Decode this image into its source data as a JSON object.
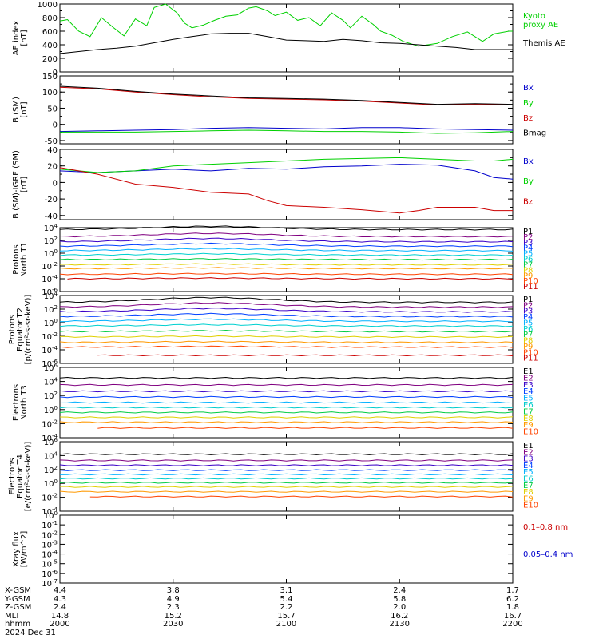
{
  "colors": {
    "black": "#000000",
    "green": "#00d000",
    "blue": "#0000cc",
    "red": "#cc0000",
    "proton_ramp": [
      "#000000",
      "#800080",
      "#3a00c8",
      "#0040ff",
      "#00b0ff",
      "#00d0d0",
      "#00cc44",
      "#e0d000",
      "#ff9900",
      "#ff4400",
      "#cc0000"
    ],
    "electron_ramp": [
      "#000000",
      "#800080",
      "#3a00c8",
      "#0040ff",
      "#00b0ff",
      "#00cccc",
      "#00cc44",
      "#e0d000",
      "#ff9900",
      "#ff4400",
      "#cc0000"
    ]
  },
  "chart_data": [
    {
      "type": "line",
      "ylabel": "AE index\n[nT]",
      "ylim": [
        0,
        1000
      ],
      "yticks": [
        "1000",
        "800",
        "600",
        "400",
        "200",
        "0"
      ],
      "legend": [
        {
          "text": "Kyoto\nproxy AE",
          "color": "#00d000"
        },
        {
          "text": "Themis AE",
          "color": "#000000"
        }
      ],
      "series": [
        {
          "name": "Kyoto proxy AE",
          "color": "#00d000",
          "x": [
            0,
            2,
            5,
            8,
            11,
            14,
            17,
            20,
            23,
            25,
            28,
            31,
            33,
            35,
            38,
            41,
            44,
            47,
            50,
            52,
            55,
            57,
            60,
            63,
            66,
            69,
            72,
            75,
            77,
            80,
            83,
            85,
            88,
            91,
            95,
            100,
            104,
            108,
            112,
            115,
            119,
            120
          ],
          "y": [
            750,
            770,
            600,
            520,
            800,
            660,
            530,
            780,
            680,
            950,
            1000,
            870,
            720,
            650,
            690,
            760,
            820,
            840,
            940,
            960,
            900,
            830,
            880,
            760,
            800,
            680,
            870,
            760,
            650,
            820,
            700,
            600,
            540,
            450,
            380,
            420,
            520,
            590,
            450,
            560,
            600,
            600
          ]
        },
        {
          "name": "Themis AE",
          "color": "#000000",
          "x": [
            0,
            5,
            10,
            15,
            20,
            25,
            30,
            35,
            40,
            45,
            50,
            55,
            60,
            65,
            70,
            75,
            80,
            85,
            90,
            95,
            100,
            105,
            110,
            115,
            120
          ],
          "y": [
            270,
            300,
            330,
            350,
            380,
            430,
            480,
            520,
            560,
            570,
            570,
            520,
            470,
            460,
            450,
            480,
            460,
            430,
            420,
            400,
            380,
            360,
            330,
            330,
            330
          ]
        }
      ]
    },
    {
      "type": "line",
      "ylabel": "B (SM)\n[nT]",
      "ylim": [
        -60,
        150
      ],
      "yticks": [
        "150",
        "100",
        "50",
        "0",
        "-50"
      ],
      "legend": [
        {
          "text": "Bx",
          "color": "#0000cc"
        },
        {
          "text": "By",
          "color": "#00d000"
        },
        {
          "text": "Bz",
          "color": "#cc0000"
        },
        {
          "text": "Bmag",
          "color": "#000000"
        }
      ],
      "series": [
        {
          "name": "Bx",
          "color": "#0000cc",
          "x": [
            0,
            10,
            20,
            30,
            40,
            50,
            60,
            70,
            80,
            90,
            100,
            110,
            120
          ],
          "y": [
            -22,
            -20,
            -18,
            -16,
            -12,
            -10,
            -12,
            -14,
            -10,
            -10,
            -14,
            -16,
            -18
          ]
        },
        {
          "name": "By",
          "color": "#00d000",
          "x": [
            0,
            10,
            20,
            30,
            40,
            50,
            60,
            70,
            80,
            90,
            100,
            110,
            120
          ],
          "y": [
            -24,
            -24,
            -24,
            -22,
            -20,
            -18,
            -20,
            -22,
            -22,
            -24,
            -28,
            -26,
            -22
          ]
        },
        {
          "name": "Bz",
          "color": "#cc0000",
          "x": [
            0,
            10,
            20,
            30,
            40,
            50,
            60,
            70,
            80,
            90,
            100,
            110,
            120
          ],
          "y": [
            115,
            110,
            100,
            92,
            85,
            80,
            78,
            76,
            72,
            66,
            60,
            62,
            60
          ]
        },
        {
          "name": "Bmag",
          "color": "#000000",
          "x": [
            0,
            10,
            20,
            30,
            40,
            50,
            60,
            70,
            80,
            90,
            100,
            110,
            120
          ],
          "y": [
            118,
            112,
            102,
            94,
            88,
            82,
            80,
            78,
            74,
            68,
            62,
            64,
            62
          ]
        }
      ]
    },
    {
      "type": "line",
      "ylabel": "B (SM)-IGRF (SM)\n[nT]",
      "ylim": [
        -45,
        40
      ],
      "yticks": [
        "40",
        "20",
        "0",
        "-20",
        "-40"
      ],
      "legend": [
        {
          "text": "Bx",
          "color": "#0000cc"
        },
        {
          "text": "By",
          "color": "#00d000"
        },
        {
          "text": "Bz",
          "color": "#cc0000"
        }
      ],
      "series": [
        {
          "name": "Bx",
          "color": "#0000cc",
          "x": [
            0,
            10,
            20,
            30,
            40,
            50,
            60,
            70,
            80,
            90,
            100,
            110,
            115,
            120
          ],
          "y": [
            14,
            12,
            14,
            16,
            14,
            17,
            16,
            19,
            20,
            22,
            21,
            14,
            6,
            4
          ]
        },
        {
          "name": "By",
          "color": "#00d000",
          "x": [
            0,
            10,
            20,
            30,
            40,
            50,
            60,
            70,
            80,
            90,
            100,
            110,
            115,
            120
          ],
          "y": [
            16,
            12,
            14,
            20,
            22,
            24,
            26,
            28,
            29,
            30,
            28,
            26,
            26,
            28
          ]
        },
        {
          "name": "Bz",
          "color": "#cc0000",
          "x": [
            0,
            10,
            20,
            30,
            40,
            50,
            55,
            60,
            70,
            80,
            90,
            95,
            100,
            110,
            115,
            120
          ],
          "y": [
            18,
            10,
            -2,
            -6,
            -12,
            -14,
            -22,
            -28,
            -30,
            -33,
            -37,
            -34,
            -30,
            -30,
            -34,
            -34
          ]
        }
      ]
    },
    {
      "type": "line",
      "log": true,
      "ylabel": "Protons\nNorth T1",
      "ylim": [
        -6,
        4
      ],
      "yticks": [
        "10^4",
        "10^2",
        "10^0",
        "10^-2",
        "10^-4",
        "10^-6"
      ],
      "legend": [
        "P1",
        "P2",
        "P3",
        "P4",
        "P5",
        "P6",
        "P7",
        "P8",
        "P9",
        "P10",
        "P11"
      ],
      "bases": [
        3.7,
        2.6,
        1.8,
        1.1,
        0.4,
        -0.3,
        -1.0,
        -1.8,
        -2.4,
        -3.3,
        -4.0
      ],
      "bump": [
        0.5,
        0.5,
        0.5,
        0.4,
        0.3,
        0.2,
        0.1,
        0.1,
        0.1,
        0.1,
        0.1
      ],
      "start": [
        0,
        0,
        0,
        0,
        0,
        0,
        0,
        0,
        0,
        0,
        2
      ]
    },
    {
      "type": "line",
      "log": true,
      "ylabel": "Protons\nEquator T2\n[p/(cm²-s-sr-keV)]",
      "ylim": [
        -6,
        4
      ],
      "yticks": [
        "10^4",
        "10^2",
        "10^0",
        "10^-2",
        "10^-4",
        "10^-6"
      ],
      "legend": [
        "P1",
        "P2",
        "P3",
        "P4",
        "P5",
        "P6",
        "P7",
        "P8",
        "P9",
        "P10",
        "P11"
      ],
      "bases": [
        3.0,
        2.3,
        1.6,
        0.9,
        0.2,
        -0.5,
        -1.3,
        -2.1,
        -2.9,
        -3.6,
        -4.8
      ],
      "bump": [
        0.7,
        0.6,
        0.5,
        0.4,
        0.3,
        0.2,
        0.1,
        0.1,
        0.1,
        0.1,
        0.0
      ],
      "start": [
        0,
        0,
        0,
        0,
        0,
        0,
        0,
        0,
        0,
        0,
        10
      ]
    },
    {
      "type": "line",
      "log": true,
      "ylabel": "Electrons\nNorth T3",
      "ylim": [
        -4,
        6
      ],
      "yticks": [
        "10^6",
        "10^4",
        "10^2",
        "10^0",
        "10^-2",
        "10^-4"
      ],
      "legend": [
        "E1",
        "E2",
        "E3",
        "E4",
        "E5",
        "E6",
        "E7",
        "E8",
        "E9",
        "E10"
      ],
      "bases": [
        4.5,
        3.5,
        2.6,
        1.8,
        1.0,
        0.3,
        -0.4,
        -1.1,
        -1.8,
        -2.6
      ],
      "bump": [
        0.0,
        0.0,
        0.0,
        0.0,
        0.0,
        0.0,
        0.0,
        0.0,
        0.0,
        0.0
      ],
      "start": [
        0,
        0,
        0,
        0,
        0,
        0,
        0,
        0,
        0,
        10
      ]
    },
    {
      "type": "line",
      "log": true,
      "ylabel": "Electrons\nEquator T4\n[e/(cm²-s-sr-keV)]",
      "ylim": [
        -4,
        6
      ],
      "yticks": [
        "10^6",
        "10^4",
        "10^2",
        "10^0",
        "10^-2",
        "10^-4"
      ],
      "legend": [
        "E1",
        "E2",
        "E3",
        "E4",
        "E5",
        "E6",
        "E7",
        "E8",
        "E9",
        "E10"
      ],
      "bases": [
        4.2,
        3.3,
        2.6,
        1.9,
        1.3,
        0.7,
        0.1,
        -0.5,
        -1.2,
        -1.9
      ],
      "bump": [
        0.0,
        0.0,
        0.0,
        0.0,
        0.0,
        0.0,
        0.0,
        0.0,
        0.0,
        0.0
      ],
      "start": [
        0,
        0,
        0,
        0,
        0,
        0,
        0,
        0,
        0,
        8
      ]
    },
    {
      "type": "line",
      "log": true,
      "ylabel": "Xray flux\n[W/m^2]",
      "ylim": [
        -7,
        0
      ],
      "yticks": [
        "10^0",
        "10^-1",
        "10^-2",
        "10^-3",
        "10^-4",
        "10^-5",
        "10^-6",
        "10^-7"
      ],
      "legend": [
        {
          "text": "0.1–0.8 nm",
          "color": "#cc0000"
        },
        {
          "text": "0.05–0.4 nm",
          "color": "#0000cc"
        }
      ],
      "series": []
    }
  ],
  "xaxis": {
    "range_minutes": [
      0,
      120
    ],
    "tick_minutes": [
      0,
      30,
      60,
      90,
      120
    ]
  },
  "footer": {
    "rows": [
      {
        "name": "X-GSM",
        "values": [
          "4.4",
          "3.8",
          "3.1",
          "2.4",
          "1.7"
        ]
      },
      {
        "name": "Y-GSM",
        "values": [
          "4.3",
          "4.9",
          "5.4",
          "5.8",
          "6.2"
        ]
      },
      {
        "name": "Z-GSM",
        "values": [
          "2.4",
          "2.3",
          "2.2",
          "2.0",
          "1.8"
        ]
      },
      {
        "name": "MLT",
        "values": [
          "14.8",
          "15.2",
          "15.7",
          "16.2",
          "16.7"
        ]
      },
      {
        "name": "hhmm",
        "values": [
          "2000",
          "2030",
          "2100",
          "2130",
          "2200"
        ]
      }
    ],
    "date": "2024 Dec 31"
  }
}
